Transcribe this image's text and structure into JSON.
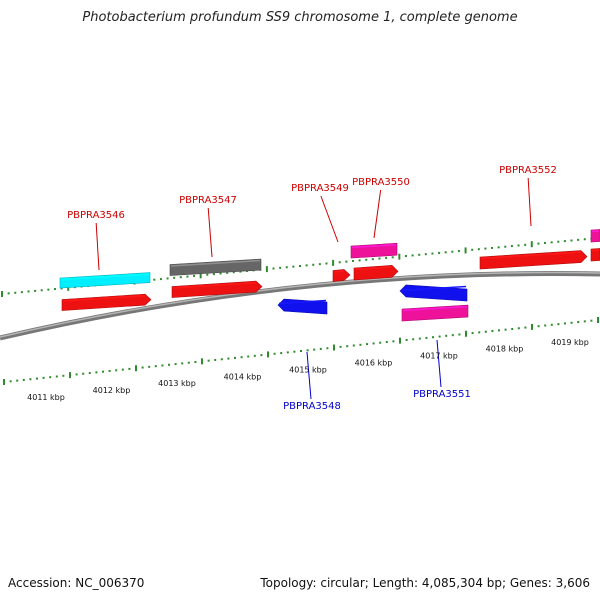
{
  "title": "Photobacterium profundum SS9 chromosome 1, complete genome",
  "footer": {
    "accession": "Accession: NC_006370",
    "stats": "Topology: circular; Length: 4,085,304 bp; Genes: 3,606"
  },
  "colors": {
    "backbone": "#8c8c8c",
    "tick": "#2e8b2e",
    "forward_label": "#cc0000",
    "reverse_label": "#0000cc",
    "red": "#ee1111",
    "cyan": "#00eeff",
    "gray": "#666666",
    "pink": "#ee1199",
    "blue": "#1111ee"
  },
  "scale_labels": [
    "4011 kbp",
    "4012 kbp",
    "4013 kbp",
    "4014 kbp",
    "4015 kbp",
    "4016 kbp",
    "4017 kbp",
    "4018 kbp",
    "4019 kbp"
  ],
  "gene_labels_forward": [
    "PBPRA3546",
    "PBPRA3547",
    "PBPRA3549",
    "PBPRA3550",
    "PBPRA3552"
  ],
  "gene_labels_reverse": [
    "PBPRA3548",
    "PBPRA3551"
  ],
  "features": [
    {
      "id": "cyan-feature-1",
      "strand": "forward",
      "color": "cyan"
    },
    {
      "id": "PBPRA3546",
      "strand": "forward",
      "color": "red"
    },
    {
      "id": "gray-feature-1",
      "strand": "forward",
      "color": "gray"
    },
    {
      "id": "PBPRA3547",
      "strand": "forward",
      "color": "red"
    },
    {
      "id": "small-feature",
      "strand": "forward",
      "color": "red"
    },
    {
      "id": "pink-feature-1",
      "strand": "forward",
      "color": "pink"
    },
    {
      "id": "PBPRA3549",
      "strand": "forward",
      "color": "red"
    },
    {
      "id": "PBPRA3548",
      "strand": "reverse",
      "color": "blue"
    },
    {
      "id": "PBPRA3551",
      "strand": "reverse",
      "color": "blue"
    },
    {
      "id": "pink-feature-2",
      "strand": "reverse",
      "color": "pink"
    },
    {
      "id": "PBPRA3552",
      "strand": "forward",
      "color": "red"
    },
    {
      "id": "pink-feature-3",
      "strand": "forward",
      "color": "pink"
    },
    {
      "id": "red-feature-edge",
      "strand": "forward",
      "color": "red"
    }
  ]
}
